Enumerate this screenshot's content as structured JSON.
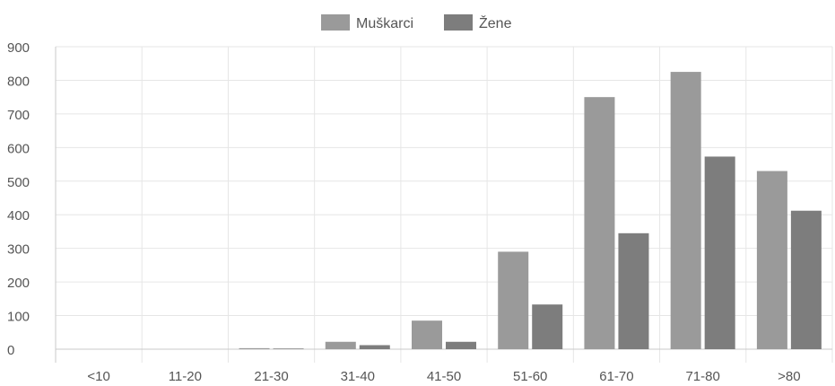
{
  "chart_data": {
    "type": "bar",
    "title": "",
    "xlabel": "",
    "ylabel": "",
    "categories": [
      "<10",
      "11-20",
      "21-30",
      "31-40",
      "41-50",
      "51-60",
      "61-70",
      "71-80",
      ">80"
    ],
    "series": [
      {
        "name": "Muškarci",
        "color": "#9a9a9a",
        "values": [
          0,
          0,
          3,
          22,
          85,
          290,
          750,
          825,
          530
        ]
      },
      {
        "name": "Žene",
        "color": "#7d7d7d",
        "values": [
          0,
          0,
          2,
          12,
          22,
          133,
          345,
          573,
          412
        ]
      }
    ],
    "ylim": [
      0,
      900
    ],
    "yticks": [
      0,
      100,
      200,
      300,
      400,
      500,
      600,
      700,
      800,
      900
    ],
    "grid": true,
    "legend_position": "top-center"
  }
}
